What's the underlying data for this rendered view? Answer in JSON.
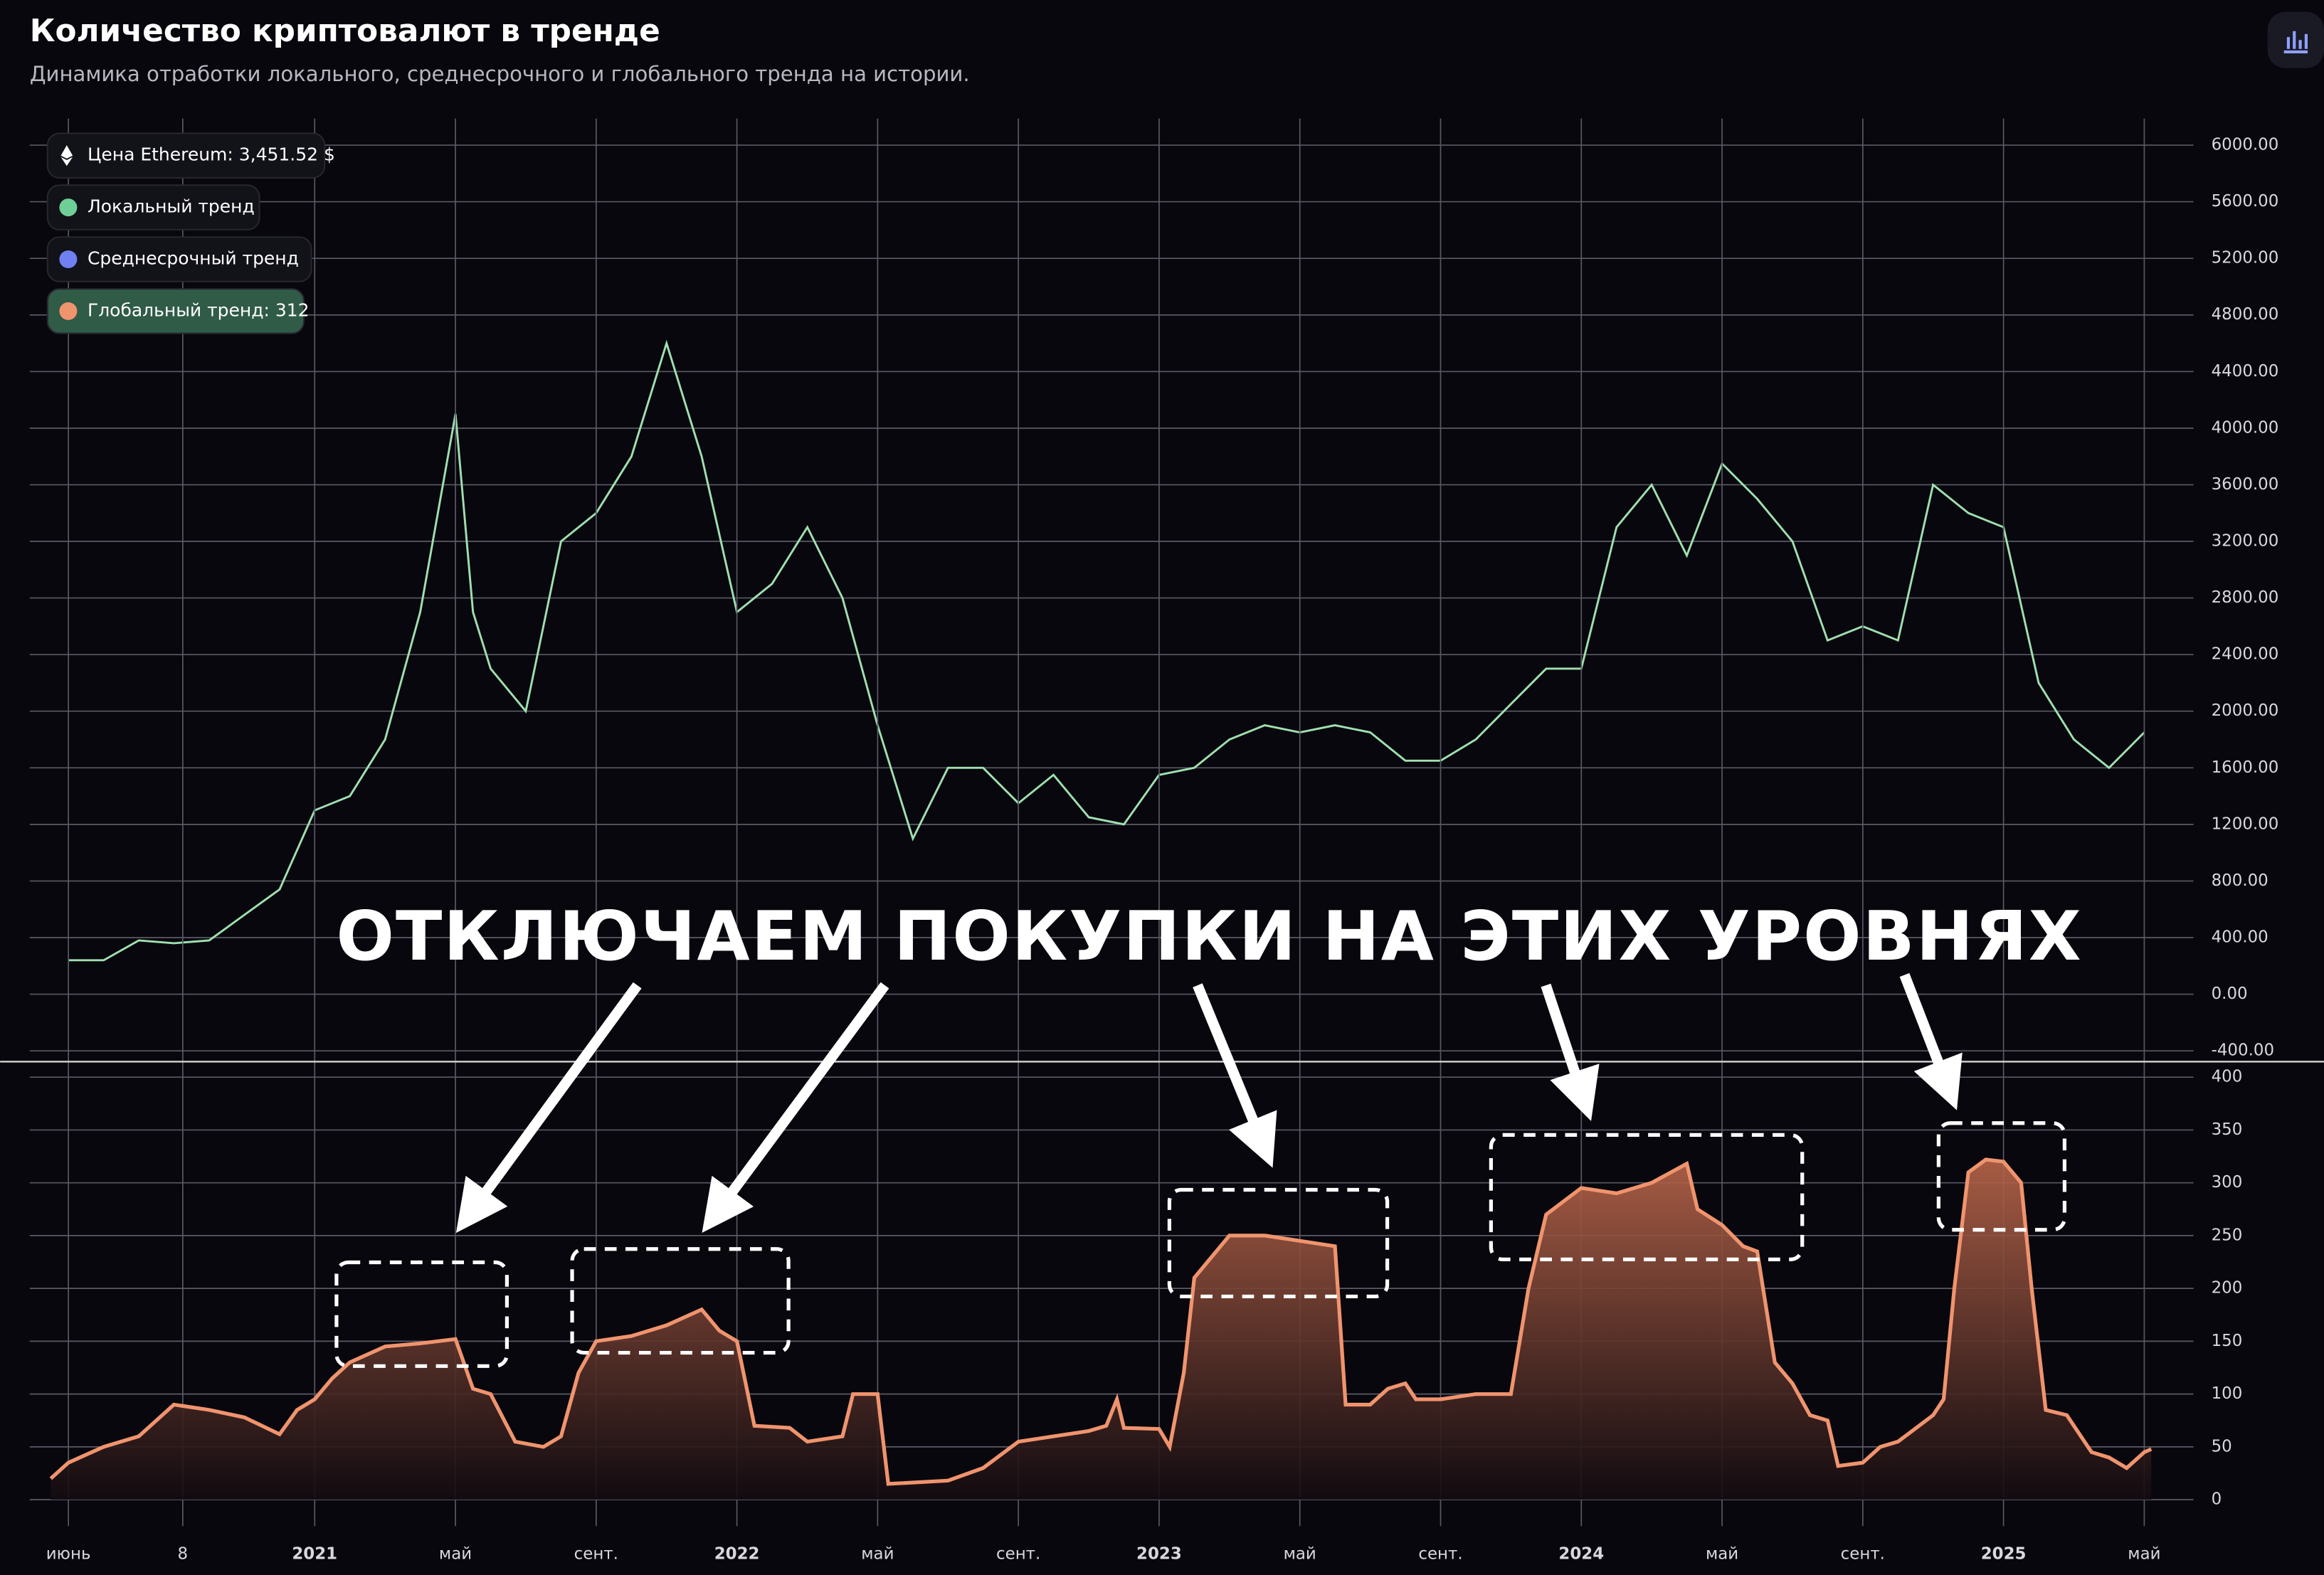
{
  "title": "Количество криптовалют в тренде",
  "subtitle": "Динамика отработки локального, среднесрочного и глобального тренда на истории.",
  "annotation": "ОТКЛЮЧАЕМ ПОКУПКИ НА ЭТИХ УРОВНЯХ",
  "legend": [
    {
      "label": "Цена Ethereum: 3,451.52 $",
      "color": "#ffffff"
    },
    {
      "label": "Локальный тренд",
      "color": "#6fcf97"
    },
    {
      "label": "Среднесрочный тренд",
      "color": "#6f80f0"
    },
    {
      "label": "Глобальный тренд: 312",
      "color": "#f0946e"
    }
  ],
  "chart_data": [
    {
      "type": "line",
      "xlim": [
        -1.1,
        60.4
      ],
      "ylim": [
        -471,
        6188
      ],
      "yticks": [
        {
          "value": -400,
          "label": "-400.00"
        },
        {
          "value": 0,
          "label": "0.00"
        },
        {
          "value": 400,
          "label": "400.00"
        },
        {
          "value": 800,
          "label": "800.00"
        },
        {
          "value": 1200,
          "label": "1200.00"
        },
        {
          "value": 1600,
          "label": "1600.00"
        },
        {
          "value": 2000,
          "label": "2000.00"
        },
        {
          "value": 2400,
          "label": "2400.00"
        },
        {
          "value": 2800,
          "label": "2800.00"
        },
        {
          "value": 3200,
          "label": "3200.00"
        },
        {
          "value": 3600,
          "label": "3600.00"
        },
        {
          "value": 4000,
          "label": "4000.00"
        },
        {
          "value": 4400,
          "label": "4400.00"
        },
        {
          "value": 4800,
          "label": "4800.00"
        },
        {
          "value": 5200,
          "label": "5200.00"
        },
        {
          "value": 5600,
          "label": "5600.00"
        },
        {
          "value": 6000,
          "label": "6000.00"
        }
      ],
      "grid": true,
      "series": [
        {
          "color": "#9fe0b0",
          "x": [
            0,
            1,
            2,
            3,
            4,
            5,
            6,
            7,
            8,
            9,
            10,
            11,
            11.5,
            12,
            13,
            14,
            15,
            16,
            17,
            18,
            19,
            20,
            21,
            22,
            23,
            24,
            25,
            26,
            27,
            28,
            29,
            30,
            31,
            32,
            33,
            34,
            35,
            36,
            37,
            38,
            39,
            40,
            41,
            42,
            43,
            44,
            45,
            46,
            47,
            48,
            49,
            50,
            51,
            52,
            53,
            54,
            55,
            56,
            57,
            58,
            59
          ],
          "values": [
            240,
            240,
            380,
            360,
            380,
            560,
            740,
            1300,
            1400,
            1800,
            2700,
            4100,
            2700,
            2300,
            2000,
            3200,
            3400,
            3800,
            4600,
            3800,
            2700,
            2900,
            3300,
            2800,
            1900,
            1100,
            1600,
            1600,
            1350,
            1550,
            1250,
            1200,
            1550,
            1600,
            1800,
            1900,
            1850,
            1900,
            1850,
            1650,
            1650,
            1800,
            2050,
            2300,
            2300,
            3300,
            3600,
            3100,
            3750,
            3500,
            3200,
            2500,
            2600,
            2500,
            3600,
            3400,
            3300,
            2200,
            1800,
            1600,
            1850
          ]
        }
      ]
    },
    {
      "type": "area",
      "xlim": [
        -1.1,
        60.4
      ],
      "ylim": [
        -25,
        414
      ],
      "yticks": [
        0,
        50,
        100,
        150,
        200,
        250,
        300,
        350,
        400
      ],
      "xticks": [
        {
          "value": 0,
          "label": "июнь"
        },
        {
          "value": 3.25,
          "label": "8"
        },
        {
          "value": 7,
          "label": "2021"
        },
        {
          "value": 11,
          "label": "май"
        },
        {
          "value": 15,
          "label": "сент."
        },
        {
          "value": 19,
          "label": "2022"
        },
        {
          "value": 23,
          "label": "май"
        },
        {
          "value": 27,
          "label": "сент."
        },
        {
          "value": 31,
          "label": "2023"
        },
        {
          "value": 35,
          "label": "май"
        },
        {
          "value": 39,
          "label": "сент."
        },
        {
          "value": 43,
          "label": "2024"
        },
        {
          "value": 47,
          "label": "май"
        },
        {
          "value": 51,
          "label": "сент."
        },
        {
          "value": 55,
          "label": "2025"
        },
        {
          "value": 59,
          "label": "май"
        }
      ],
      "grid": true,
      "series": [
        {
          "color": "#f0946e",
          "x": [
            -0.5,
            0,
            1,
            2,
            3,
            4,
            5,
            6,
            6.5,
            7,
            7.5,
            8,
            9,
            10,
            11,
            11.5,
            12,
            12.7,
            13.5,
            14,
            14.5,
            15,
            16,
            17,
            18,
            18.5,
            19,
            19.5,
            20.5,
            21,
            22,
            22.3,
            23,
            23.3,
            25,
            26,
            27,
            28,
            29,
            29.5,
            29.8,
            30,
            31,
            31.3,
            31.7,
            32,
            33,
            34,
            35,
            36,
            36.3,
            37,
            37.5,
            38,
            38.3,
            39,
            40,
            41,
            41.5,
            42,
            43,
            44,
            45,
            46,
            46.3,
            47,
            47.6,
            48,
            48.5,
            49,
            49.5,
            50,
            50.3,
            51,
            51.5,
            52,
            53,
            53.3,
            53.6,
            54,
            54.5,
            55,
            55.5,
            55.8,
            56.2,
            56.8,
            57.5,
            58,
            58.5,
            59,
            59.2
          ],
          "values": [
            20,
            35,
            50,
            60,
            90,
            85,
            78,
            62,
            85,
            95,
            115,
            130,
            145,
            148,
            152,
            105,
            100,
            55,
            50,
            60,
            120,
            150,
            155,
            165,
            180,
            160,
            150,
            70,
            68,
            55,
            60,
            100,
            100,
            15,
            18,
            30,
            55,
            60,
            65,
            70,
            95,
            68,
            67,
            50,
            120,
            210,
            250,
            250,
            245,
            240,
            90,
            90,
            105,
            110,
            95,
            95,
            100,
            100,
            200,
            270,
            295,
            290,
            300,
            318,
            275,
            260,
            240,
            235,
            130,
            110,
            80,
            75,
            32,
            35,
            50,
            55,
            80,
            95,
            200,
            310,
            322,
            320,
            300,
            200,
            85,
            80,
            45,
            40,
            30,
            45,
            48
          ]
        }
      ]
    }
  ]
}
